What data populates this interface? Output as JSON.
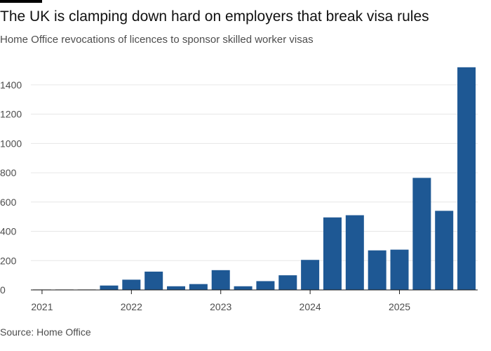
{
  "header": {
    "title": "The UK is clamping down hard on employers that break visa rules",
    "subtitle": "Home Office revocations of licences to sponsor skilled worker visas"
  },
  "footer": {
    "source": "Source: Home Office"
  },
  "colors": {
    "bar": "#1e5894",
    "zero_bar": "#c8c8c8",
    "grid": "#e6e6e6",
    "axis": "#1a1a1a",
    "text": "#4d4d4d"
  },
  "chart_data": {
    "type": "bar",
    "title": "The UK is clamping down hard on employers that break visa rules",
    "subtitle": "Home Office revocations of licences to sponsor skilled worker visas",
    "xlabel": "",
    "ylabel": "",
    "ylim": [
      0,
      1500
    ],
    "yticks": [
      0,
      200,
      400,
      600,
      800,
      1000,
      1200,
      1400
    ],
    "grid": true,
    "categories": [
      "2021 Q1",
      "2021 Q2",
      "2021 Q3",
      "2021 Q4",
      "2022 Q1",
      "2022 Q2",
      "2022 Q3",
      "2022 Q4",
      "2023 Q1",
      "2023 Q2",
      "2023 Q3",
      "2023 Q4",
      "2024 Q1",
      "2024 Q2",
      "2024 Q3",
      "2024 Q4",
      "2025 Q1",
      "2025 Q2",
      "2025 Q3",
      "2025 Q4"
    ],
    "values": [
      2,
      2,
      2,
      30,
      70,
      125,
      25,
      40,
      135,
      25,
      60,
      100,
      205,
      495,
      510,
      270,
      275,
      765,
      540,
      1520
    ],
    "year_labels": [
      {
        "label": "2021",
        "start_index": 0
      },
      {
        "label": "2022",
        "start_index": 4
      },
      {
        "label": "2023",
        "start_index": 8
      },
      {
        "label": "2024",
        "start_index": 12
      },
      {
        "label": "2025",
        "start_index": 16
      }
    ]
  }
}
